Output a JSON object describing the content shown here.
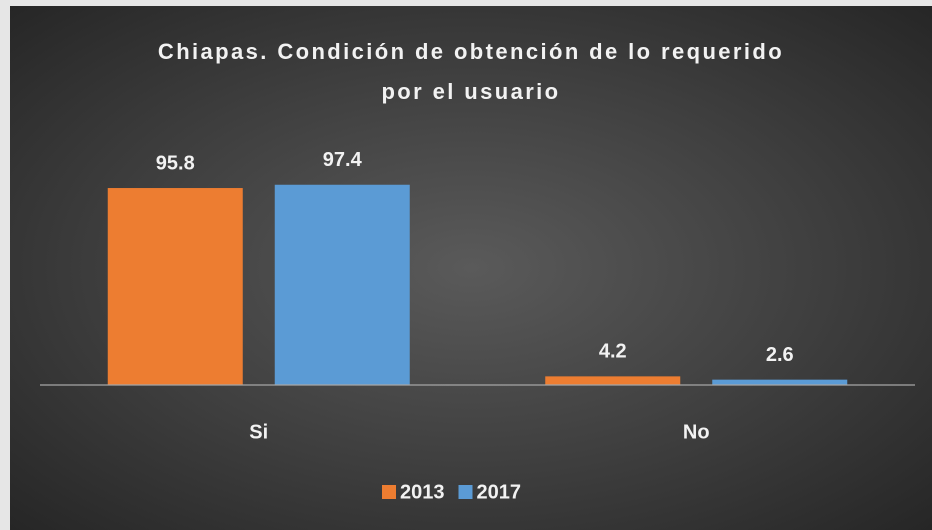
{
  "chart_data": {
    "type": "bar",
    "title": "Chiapas. Condición de obtención de lo requerido por el usuario",
    "categories": [
      "Si",
      "No"
    ],
    "series": [
      {
        "name": "2013",
        "color": "#ed7d31",
        "values": [
          95.8,
          4.2
        ]
      },
      {
        "name": "2017",
        "color": "#5b9bd5",
        "values": [
          97.4,
          2.6
        ]
      }
    ]
  }
}
